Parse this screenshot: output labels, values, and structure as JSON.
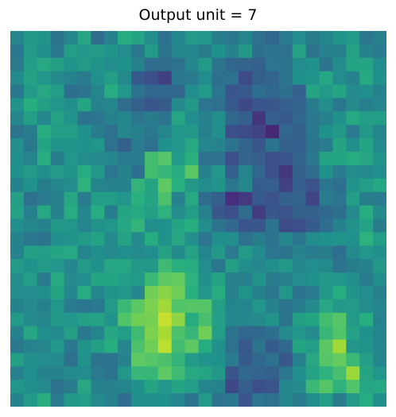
{
  "chart_data": {
    "type": "heatmap",
    "title": "Output unit = 7",
    "colormap": "viridis",
    "vmin": 0,
    "vmax": 1,
    "axes": "off",
    "rows": 28,
    "cols": 28,
    "values": [
      [
        0.46,
        0.53,
        0.51,
        0.38,
        0.45,
        0.59,
        0.35,
        0.44,
        0.61,
        0.58,
        0.48,
        0.37,
        0.45,
        0.54,
        0.52,
        0.42,
        0.4,
        0.45,
        0.37,
        0.33,
        0.41,
        0.48,
        0.42,
        0.45,
        0.51,
        0.54,
        0.4,
        0.43
      ],
      [
        0.4,
        0.54,
        0.49,
        0.4,
        0.55,
        0.52,
        0.54,
        0.51,
        0.48,
        0.4,
        0.54,
        0.38,
        0.45,
        0.46,
        0.42,
        0.5,
        0.44,
        0.53,
        0.36,
        0.38,
        0.37,
        0.57,
        0.38,
        0.44,
        0.43,
        0.57,
        0.44,
        0.41
      ],
      [
        0.41,
        0.55,
        0.6,
        0.56,
        0.51,
        0.54,
        0.51,
        0.48,
        0.5,
        0.44,
        0.35,
        0.35,
        0.37,
        0.46,
        0.54,
        0.38,
        0.33,
        0.32,
        0.31,
        0.39,
        0.38,
        0.48,
        0.5,
        0.38,
        0.48,
        0.58,
        0.58,
        0.48
      ],
      [
        0.47,
        0.57,
        0.52,
        0.47,
        0.44,
        0.41,
        0.5,
        0.55,
        0.47,
        0.28,
        0.24,
        0.19,
        0.4,
        0.41,
        0.48,
        0.36,
        0.37,
        0.23,
        0.31,
        0.32,
        0.38,
        0.5,
        0.51,
        0.59,
        0.48,
        0.44,
        0.6,
        0.5
      ],
      [
        0.4,
        0.54,
        0.6,
        0.55,
        0.36,
        0.38,
        0.45,
        0.61,
        0.52,
        0.38,
        0.33,
        0.34,
        0.33,
        0.48,
        0.54,
        0.39,
        0.26,
        0.28,
        0.36,
        0.33,
        0.36,
        0.3,
        0.58,
        0.54,
        0.58,
        0.47,
        0.49,
        0.44
      ],
      [
        0.51,
        0.62,
        0.56,
        0.52,
        0.49,
        0.58,
        0.44,
        0.45,
        0.35,
        0.31,
        0.26,
        0.29,
        0.47,
        0.53,
        0.39,
        0.37,
        0.28,
        0.22,
        0.26,
        0.27,
        0.3,
        0.32,
        0.42,
        0.49,
        0.4,
        0.47,
        0.43,
        0.46
      ],
      [
        0.46,
        0.56,
        0.46,
        0.57,
        0.51,
        0.38,
        0.39,
        0.43,
        0.46,
        0.39,
        0.42,
        0.38,
        0.59,
        0.48,
        0.44,
        0.49,
        0.34,
        0.3,
        0.15,
        0.3,
        0.28,
        0.33,
        0.4,
        0.43,
        0.5,
        0.6,
        0.56,
        0.55
      ],
      [
        0.38,
        0.42,
        0.62,
        0.55,
        0.55,
        0.5,
        0.42,
        0.37,
        0.46,
        0.43,
        0.4,
        0.45,
        0.52,
        0.53,
        0.43,
        0.49,
        0.24,
        0.23,
        0.2,
        0.11,
        0.33,
        0.31,
        0.4,
        0.5,
        0.53,
        0.41,
        0.53,
        0.45
      ],
      [
        0.49,
        0.4,
        0.58,
        0.51,
        0.51,
        0.5,
        0.52,
        0.37,
        0.31,
        0.41,
        0.37,
        0.5,
        0.52,
        0.6,
        0.46,
        0.44,
        0.38,
        0.32,
        0.27,
        0.38,
        0.31,
        0.3,
        0.38,
        0.41,
        0.58,
        0.49,
        0.58,
        0.47
      ],
      [
        0.49,
        0.45,
        0.62,
        0.42,
        0.52,
        0.49,
        0.47,
        0.46,
        0.41,
        0.42,
        0.69,
        0.73,
        0.54,
        0.63,
        0.37,
        0.37,
        0.24,
        0.32,
        0.3,
        0.24,
        0.26,
        0.32,
        0.4,
        0.58,
        0.58,
        0.61,
        0.59,
        0.51
      ],
      [
        0.5,
        0.54,
        0.49,
        0.54,
        0.51,
        0.61,
        0.53,
        0.39,
        0.44,
        0.36,
        0.69,
        0.66,
        0.62,
        0.74,
        0.44,
        0.52,
        0.3,
        0.45,
        0.33,
        0.24,
        0.16,
        0.31,
        0.35,
        0.5,
        0.41,
        0.49,
        0.47,
        0.48
      ],
      [
        0.44,
        0.5,
        0.42,
        0.46,
        0.48,
        0.64,
        0.45,
        0.44,
        0.44,
        0.65,
        0.58,
        0.75,
        0.63,
        0.53,
        0.48,
        0.51,
        0.4,
        0.46,
        0.29,
        0.3,
        0.19,
        0.3,
        0.25,
        0.39,
        0.36,
        0.51,
        0.55,
        0.59
      ],
      [
        0.56,
        0.37,
        0.41,
        0.43,
        0.59,
        0.41,
        0.55,
        0.55,
        0.52,
        0.63,
        0.58,
        0.71,
        0.44,
        0.6,
        0.35,
        0.31,
        0.13,
        0.17,
        0.28,
        0.25,
        0.31,
        0.32,
        0.2,
        0.41,
        0.39,
        0.55,
        0.42,
        0.41
      ],
      [
        0.57,
        0.43,
        0.6,
        0.44,
        0.62,
        0.46,
        0.61,
        0.42,
        0.58,
        0.6,
        0.56,
        0.64,
        0.48,
        0.55,
        0.43,
        0.27,
        0.24,
        0.35,
        0.18,
        0.27,
        0.25,
        0.31,
        0.31,
        0.34,
        0.36,
        0.47,
        0.61,
        0.47
      ],
      [
        0.49,
        0.46,
        0.44,
        0.53,
        0.52,
        0.45,
        0.51,
        0.52,
        0.59,
        0.65,
        0.49,
        0.5,
        0.58,
        0.62,
        0.48,
        0.38,
        0.34,
        0.26,
        0.27,
        0.38,
        0.23,
        0.24,
        0.29,
        0.36,
        0.44,
        0.51,
        0.57,
        0.42
      ],
      [
        0.44,
        0.4,
        0.38,
        0.49,
        0.51,
        0.54,
        0.57,
        0.47,
        0.57,
        0.47,
        0.61,
        0.5,
        0.59,
        0.49,
        0.39,
        0.49,
        0.49,
        0.37,
        0.42,
        0.38,
        0.46,
        0.39,
        0.48,
        0.5,
        0.51,
        0.5,
        0.64,
        0.55
      ],
      [
        0.44,
        0.56,
        0.55,
        0.58,
        0.6,
        0.45,
        0.49,
        0.47,
        0.49,
        0.47,
        0.48,
        0.57,
        0.47,
        0.57,
        0.45,
        0.53,
        0.41,
        0.54,
        0.47,
        0.39,
        0.38,
        0.44,
        0.41,
        0.42,
        0.36,
        0.47,
        0.52,
        0.49
      ],
      [
        0.54,
        0.5,
        0.54,
        0.52,
        0.46,
        0.54,
        0.5,
        0.59,
        0.59,
        0.53,
        0.53,
        0.68,
        0.63,
        0.61,
        0.48,
        0.4,
        0.56,
        0.49,
        0.46,
        0.49,
        0.53,
        0.46,
        0.48,
        0.47,
        0.38,
        0.42,
        0.44,
        0.53
      ],
      [
        0.49,
        0.55,
        0.41,
        0.6,
        0.47,
        0.49,
        0.58,
        0.58,
        0.55,
        0.54,
        0.67,
        0.75,
        0.76,
        0.64,
        0.5,
        0.58,
        0.43,
        0.43,
        0.51,
        0.41,
        0.43,
        0.48,
        0.5,
        0.53,
        0.52,
        0.49,
        0.42,
        0.48
      ],
      [
        0.48,
        0.48,
        0.49,
        0.58,
        0.46,
        0.61,
        0.45,
        0.51,
        0.52,
        0.46,
        0.78,
        0.82,
        0.78,
        0.63,
        0.52,
        0.62,
        0.43,
        0.51,
        0.43,
        0.4,
        0.52,
        0.38,
        0.41,
        0.53,
        0.61,
        0.51,
        0.48,
        0.43
      ],
      [
        0.44,
        0.47,
        0.43,
        0.52,
        0.41,
        0.39,
        0.4,
        0.54,
        0.67,
        0.74,
        0.8,
        0.86,
        0.72,
        0.73,
        0.73,
        0.56,
        0.45,
        0.45,
        0.52,
        0.44,
        0.38,
        0.42,
        0.47,
        0.6,
        0.53,
        0.54,
        0.48,
        0.46
      ],
      [
        0.54,
        0.47,
        0.45,
        0.53,
        0.52,
        0.56,
        0.57,
        0.51,
        0.72,
        0.78,
        0.79,
        0.92,
        0.83,
        0.61,
        0.7,
        0.56,
        0.46,
        0.46,
        0.47,
        0.51,
        0.38,
        0.56,
        0.58,
        0.69,
        0.73,
        0.54,
        0.62,
        0.44
      ],
      [
        0.44,
        0.59,
        0.49,
        0.47,
        0.56,
        0.4,
        0.45,
        0.59,
        0.55,
        0.68,
        0.8,
        0.87,
        0.71,
        0.66,
        0.78,
        0.55,
        0.38,
        0.33,
        0.34,
        0.36,
        0.47,
        0.52,
        0.47,
        0.66,
        0.72,
        0.57,
        0.5,
        0.45
      ],
      [
        0.4,
        0.44,
        0.46,
        0.52,
        0.4,
        0.51,
        0.56,
        0.62,
        0.46,
        0.71,
        0.78,
        0.9,
        0.69,
        0.75,
        0.61,
        0.5,
        0.37,
        0.28,
        0.38,
        0.29,
        0.34,
        0.58,
        0.55,
        0.74,
        0.86,
        0.52,
        0.51,
        0.46
      ],
      [
        0.56,
        0.49,
        0.48,
        0.47,
        0.37,
        0.51,
        0.38,
        0.38,
        0.44,
        0.75,
        0.73,
        0.71,
        0.65,
        0.54,
        0.51,
        0.5,
        0.41,
        0.29,
        0.34,
        0.37,
        0.27,
        0.43,
        0.6,
        0.73,
        0.76,
        0.67,
        0.56,
        0.45
      ],
      [
        0.43,
        0.49,
        0.44,
        0.44,
        0.47,
        0.48,
        0.41,
        0.38,
        0.52,
        0.66,
        0.66,
        0.75,
        0.68,
        0.6,
        0.58,
        0.53,
        0.26,
        0.34,
        0.32,
        0.31,
        0.39,
        0.49,
        0.57,
        0.64,
        0.7,
        0.85,
        0.58,
        0.52
      ],
      [
        0.52,
        0.49,
        0.47,
        0.37,
        0.41,
        0.6,
        0.44,
        0.43,
        0.45,
        0.5,
        0.58,
        0.52,
        0.58,
        0.55,
        0.45,
        0.44,
        0.22,
        0.3,
        0.24,
        0.26,
        0.45,
        0.47,
        0.67,
        0.73,
        0.64,
        0.72,
        0.59,
        0.6
      ],
      [
        0.44,
        0.54,
        0.62,
        0.41,
        0.53,
        0.55,
        0.47,
        0.43,
        0.36,
        0.49,
        0.49,
        0.5,
        0.45,
        0.38,
        0.54,
        0.38,
        0.4,
        0.26,
        0.39,
        0.37,
        0.45,
        0.41,
        0.48,
        0.56,
        0.41,
        0.54,
        0.61,
        0.49
      ]
    ]
  }
}
